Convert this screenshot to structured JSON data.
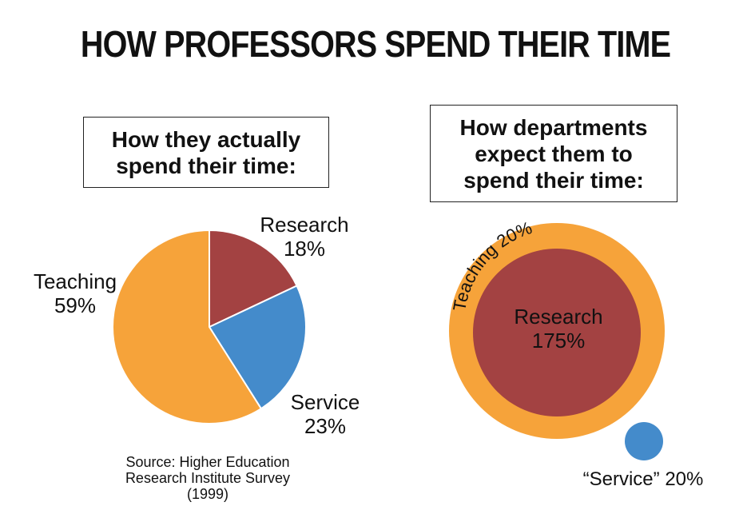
{
  "title": "HOW PROFESSORS SPEND THEIR TIME",
  "panels": {
    "actual_heading": [
      "How they actually",
      "spend their time:"
    ],
    "expected_heading": [
      "How departments",
      "expect them to",
      "spend their time:"
    ]
  },
  "colors": {
    "teaching": "#F6A33A",
    "research": "#A34242",
    "service": "#448BCB"
  },
  "chart_data": [
    {
      "type": "pie",
      "title": "How they actually spend their time:",
      "slices": [
        {
          "label": "Research",
          "value": 18,
          "display": "18%"
        },
        {
          "label": "Service",
          "value": 23,
          "display": "23%"
        },
        {
          "label": "Teaching",
          "value": 59,
          "display": "59%"
        }
      ]
    },
    {
      "type": "other",
      "title": "How departments expect them to spend their time:",
      "items": [
        {
          "label": "Teaching",
          "value": 20,
          "display": "20%"
        },
        {
          "label": "Research",
          "value": 175,
          "display": "175%"
        },
        {
          "label": "“Service”",
          "value": 20,
          "display": "20%"
        }
      ]
    }
  ],
  "source": [
    "Source: Higher Education",
    "Research Institute Survey",
    "(1999)"
  ]
}
